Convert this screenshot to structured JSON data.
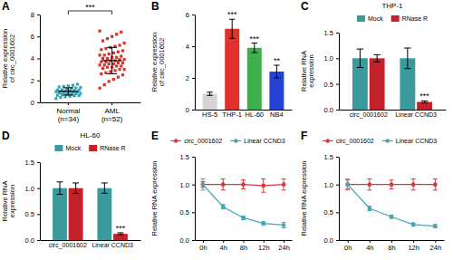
{
  "chart_data": [
    {
      "panel_label": "A",
      "type": "dot",
      "marker": "square",
      "categories": [
        "Normal (n=34)",
        "AML (n=52)"
      ],
      "values": [
        [
          0.35,
          0.45,
          0.5,
          0.55,
          0.6,
          0.62,
          0.65,
          0.7,
          0.72,
          0.75,
          0.8,
          0.82,
          0.85,
          0.88,
          0.9,
          0.92,
          0.95,
          0.97,
          1.0,
          1.02,
          1.05,
          1.08,
          1.1,
          1.12,
          1.15,
          1.2,
          1.25,
          1.3,
          1.35,
          1.4,
          1.45,
          1.5,
          1.55,
          1.65
        ],
        [
          1.3,
          1.6,
          1.9,
          2.1,
          2.3,
          2.5,
          2.6,
          2.7,
          2.8,
          2.9,
          3.0,
          3.0,
          3.1,
          3.2,
          3.2,
          3.3,
          3.3,
          3.4,
          3.4,
          3.5,
          3.5,
          3.6,
          3.6,
          3.7,
          3.7,
          3.8,
          3.8,
          3.9,
          3.9,
          4.0,
          4.0,
          4.1,
          4.1,
          4.2,
          4.3,
          4.3,
          4.4,
          4.5,
          4.6,
          4.7,
          4.8,
          4.9,
          5.0,
          5.1,
          5.2,
          5.4,
          5.6,
          5.8,
          6.0,
          6.2,
          6.4,
          6.5
        ]
      ],
      "means": [
        1.0,
        3.8
      ],
      "errors": [
        0.33,
        1.2
      ],
      "colors": [
        "#3aa1b5",
        "#d6322e"
      ],
      "significance": "***",
      "ylabel": "Relative expression of circ_0001602",
      "ylim": [
        0,
        8
      ],
      "yticks": [
        0,
        2,
        4,
        6,
        8
      ]
    },
    {
      "panel_label": "B",
      "type": "bar",
      "categories": [
        "HS-5",
        "THP-1",
        "HL-60",
        "NB4"
      ],
      "values": [
        1.0,
        5.1,
        3.9,
        2.4
      ],
      "errors": [
        0.1,
        0.6,
        0.3,
        0.4
      ],
      "significance": [
        null,
        "***",
        "***",
        "**"
      ],
      "colors": [
        "#d4d4d4",
        "#e3302b",
        "#3db049",
        "#2443d6"
      ],
      "ylabel": "Relative expression of circ_0001602",
      "ylim": [
        0,
        6
      ],
      "yticks": [
        0,
        2,
        4,
        6
      ]
    },
    {
      "panel_label": "C",
      "type": "bar",
      "title": "THP-1",
      "legend": "top",
      "categories": [
        "circ_0001602",
        "Linear CCND3"
      ],
      "series": [
        {
          "name": "Mock",
          "color": "#3a9a9c",
          "values": [
            1.0,
            1.0
          ],
          "errors": [
            0.18,
            0.2
          ]
        },
        {
          "name": "RNase R",
          "color": "#c4222b",
          "values": [
            1.0,
            0.15
          ],
          "errors": [
            0.07,
            0.02
          ],
          "significance": [
            null,
            "***"
          ]
        }
      ],
      "ylabel": "Relative RNA expression",
      "ylim": [
        0,
        1.5
      ],
      "yticks": [
        {
          "value": 0,
          "label": "0.0"
        },
        {
          "value": 0.5,
          "label": "0.5"
        },
        {
          "value": 1,
          "label": "1.0"
        },
        {
          "value": 1.5,
          "label": "1.5"
        }
      ]
    },
    {
      "panel_label": "D",
      "type": "bar",
      "title": "HL-60",
      "legend": "top",
      "categories": [
        "circ_0001602",
        "Linear CCND3"
      ],
      "series": [
        {
          "name": "Mock",
          "color": "#3a9a9c",
          "values": [
            1.0,
            1.0
          ],
          "errors": [
            0.12,
            0.1
          ]
        },
        {
          "name": "RNase R",
          "color": "#c4222b",
          "values": [
            1.0,
            0.12
          ],
          "errors": [
            0.1,
            0.02
          ],
          "significance": [
            null,
            "***"
          ]
        }
      ],
      "ylabel": "Relative RNA expression",
      "ylim": [
        0,
        1.5
      ],
      "yticks": [
        {
          "value": 0,
          "label": "0.0"
        },
        {
          "value": 0.5,
          "label": "0.5"
        },
        {
          "value": 1,
          "label": "1.0"
        },
        {
          "value": 1.5,
          "label": "1.5"
        }
      ]
    },
    {
      "panel_label": "E",
      "type": "line",
      "legend": "top",
      "marker": "circle",
      "categories": [
        "0h",
        "4h",
        "8h",
        "12h",
        "24h"
      ],
      "series": [
        {
          "name": "circ_0001602",
          "color": "#d9363e",
          "values": [
            1.0,
            1.0,
            1.0,
            0.98,
            1.0
          ],
          "errors": [
            0.05,
            0.1,
            0.08,
            0.12,
            0.1
          ]
        },
        {
          "name": "Linear CCND3",
          "color": "#45a5b5",
          "values": [
            1.0,
            0.6,
            0.4,
            0.3,
            0.27
          ],
          "errors": [
            0.1,
            0.04,
            0.03,
            0.03,
            0.05
          ]
        }
      ],
      "ylabel": "Relative RNA expression",
      "ylim": [
        0,
        1.5
      ],
      "yticks": [
        {
          "value": 0,
          "label": "0.0"
        },
        {
          "value": 0.5,
          "label": "0.5"
        },
        {
          "value": 1,
          "label": "1.0"
        },
        {
          "value": 1.5,
          "label": "1.5"
        }
      ]
    },
    {
      "panel_label": "F",
      "type": "line",
      "legend": "top",
      "marker": "circle",
      "categories": [
        "0h",
        "4h",
        "8h",
        "12h",
        "24h"
      ],
      "series": [
        {
          "name": "circ_0001602",
          "color": "#d9363e",
          "values": [
            1.0,
            1.0,
            1.0,
            1.0,
            1.0
          ],
          "errors": [
            0.08,
            0.1,
            0.08,
            0.1,
            0.1
          ]
        },
        {
          "name": "Linear CCND3",
          "color": "#45a5b5",
          "values": [
            1.0,
            0.57,
            0.42,
            0.28,
            0.25
          ],
          "errors": [
            0.1,
            0.04,
            0.03,
            0.03,
            0.03
          ]
        }
      ],
      "ylabel": "Relative RNA expression",
      "ylim": [
        0,
        1.5
      ],
      "yticks": [
        {
          "value": 0,
          "label": "0.0"
        },
        {
          "value": 0.5,
          "label": "0.5"
        },
        {
          "value": 1,
          "label": "1.0"
        },
        {
          "value": 1.5,
          "label": "1.5"
        }
      ]
    }
  ]
}
